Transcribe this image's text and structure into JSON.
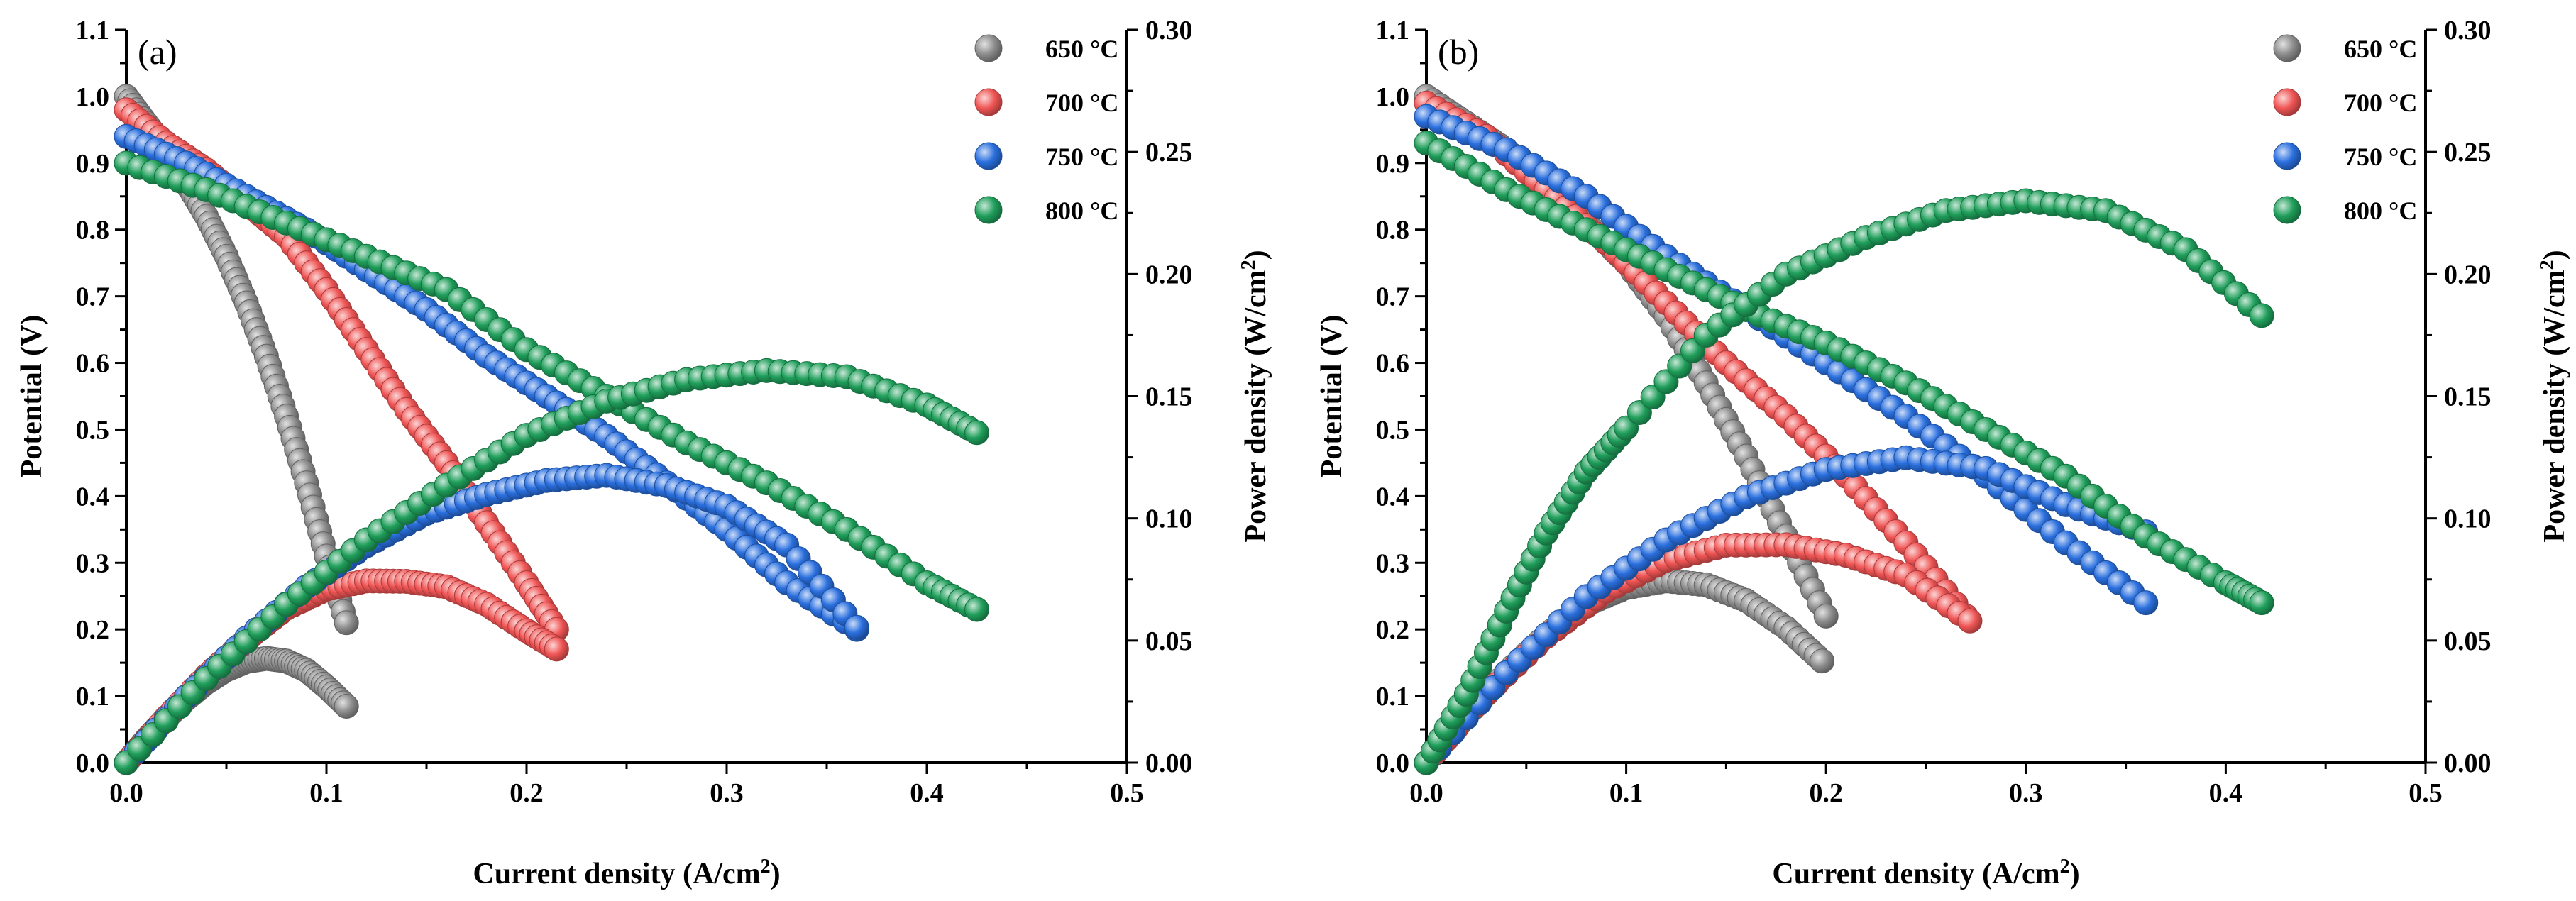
{
  "chart_data": [
    {
      "panel_label": "(a)",
      "type": "scatter",
      "xlabel": "Current density (A/cm",
      "xlabel_sup": "2",
      "xlabel_end": ")",
      "ylabel": "Potential (V)",
      "y2label": "Power density (W/cm",
      "y2label_sup": "2",
      "y2label_end": ")",
      "xlim": [
        0,
        0.5
      ],
      "ylim": [
        0,
        1.1
      ],
      "y2lim": [
        0,
        0.3
      ],
      "xticks": [
        "0.0",
        "0.1",
        "0.2",
        "0.3",
        "0.4",
        "0.5"
      ],
      "yticks": [
        "0.0",
        "0.1",
        "0.2",
        "0.3",
        "0.4",
        "0.5",
        "0.6",
        "0.7",
        "0.8",
        "0.9",
        "1.0",
        "1.1"
      ],
      "y2ticks": [
        "0.00",
        "0.05",
        "0.10",
        "0.15",
        "0.20",
        "0.25",
        "0.30"
      ],
      "legend_position": "top-right",
      "series": [
        {
          "name": "650 °C",
          "color": "#8c8c8c",
          "voltage": [
            [
              0,
              1.0
            ],
            [
              0.01,
              0.96
            ],
            [
              0.02,
              0.92
            ],
            [
              0.03,
              0.87
            ],
            [
              0.04,
              0.82
            ],
            [
              0.05,
              0.76
            ],
            [
              0.06,
              0.69
            ],
            [
              0.07,
              0.61
            ],
            [
              0.08,
              0.52
            ],
            [
              0.09,
              0.42
            ],
            [
              0.1,
              0.31
            ],
            [
              0.11,
              0.21
            ]
          ],
          "power": [
            [
              0,
              0
            ],
            [
              0.01,
              0.0096
            ],
            [
              0.02,
              0.0184
            ],
            [
              0.03,
              0.0261
            ],
            [
              0.04,
              0.0328
            ],
            [
              0.05,
              0.038
            ],
            [
              0.06,
              0.0414
            ],
            [
              0.07,
              0.0427
            ],
            [
              0.08,
              0.0416
            ],
            [
              0.09,
              0.0378
            ],
            [
              0.1,
              0.031
            ],
            [
              0.11,
              0.0231
            ]
          ]
        },
        {
          "name": "700 °C",
          "color": "#f05555",
          "voltage": [
            [
              0,
              0.98
            ],
            [
              0.02,
              0.93
            ],
            [
              0.04,
              0.89
            ],
            [
              0.06,
              0.84
            ],
            [
              0.08,
              0.79
            ],
            [
              0.1,
              0.71
            ],
            [
              0.12,
              0.62
            ],
            [
              0.14,
              0.53
            ],
            [
              0.16,
              0.45
            ],
            [
              0.18,
              0.36
            ],
            [
              0.2,
              0.27
            ],
            [
              0.215,
              0.2
            ]
          ],
          "power": [
            [
              0,
              0
            ],
            [
              0.02,
              0.0186
            ],
            [
              0.04,
              0.0356
            ],
            [
              0.06,
              0.0504
            ],
            [
              0.08,
              0.0632
            ],
            [
              0.1,
              0.071
            ],
            [
              0.12,
              0.0744
            ],
            [
              0.14,
              0.0742
            ],
            [
              0.16,
              0.072
            ],
            [
              0.18,
              0.0648
            ],
            [
              0.2,
              0.054
            ],
            [
              0.215,
              0.0465
            ]
          ]
        },
        {
          "name": "750 °C",
          "color": "#2a6fde",
          "voltage": [
            [
              0,
              0.94
            ],
            [
              0.03,
              0.9
            ],
            [
              0.06,
              0.85
            ],
            [
              0.09,
              0.8
            ],
            [
              0.12,
              0.74
            ],
            [
              0.15,
              0.68
            ],
            [
              0.18,
              0.61
            ],
            [
              0.21,
              0.55
            ],
            [
              0.24,
              0.49
            ],
            [
              0.27,
              0.42
            ],
            [
              0.3,
              0.35
            ],
            [
              0.33,
              0.27
            ],
            [
              0.365,
              0.2
            ]
          ],
          "power": [
            [
              0,
              0
            ],
            [
              0.03,
              0.027
            ],
            [
              0.06,
              0.051
            ],
            [
              0.09,
              0.072
            ],
            [
              0.12,
              0.0888
            ],
            [
              0.15,
              0.102
            ],
            [
              0.18,
              0.1098
            ],
            [
              0.21,
              0.1155
            ],
            [
              0.24,
              0.1176
            ],
            [
              0.27,
              0.1134
            ],
            [
              0.3,
              0.105
            ],
            [
              0.33,
              0.0891
            ],
            [
              0.365,
              0.0554
            ]
          ]
        },
        {
          "name": "800 °C",
          "color": "#1f9e5a",
          "voltage": [
            [
              0,
              0.9
            ],
            [
              0.04,
              0.86
            ],
            [
              0.08,
              0.81
            ],
            [
              0.12,
              0.76
            ],
            [
              0.16,
              0.71
            ],
            [
              0.2,
              0.62
            ],
            [
              0.24,
              0.55
            ],
            [
              0.28,
              0.48
            ],
            [
              0.32,
              0.42
            ],
            [
              0.36,
              0.35
            ],
            [
              0.4,
              0.27
            ],
            [
              0.425,
              0.23
            ]
          ],
          "power": [
            [
              0,
              0
            ],
            [
              0.04,
              0.0344
            ],
            [
              0.08,
              0.0648
            ],
            [
              0.12,
              0.0912
            ],
            [
              0.16,
              0.1136
            ],
            [
              0.2,
              0.134
            ],
            [
              0.24,
              0.148
            ],
            [
              0.28,
              0.1568
            ],
            [
              0.32,
              0.1605
            ],
            [
              0.36,
              0.158
            ],
            [
              0.4,
              0.1464
            ],
            [
              0.425,
              0.1351
            ]
          ]
        }
      ]
    },
    {
      "panel_label": "(b)",
      "type": "scatter",
      "xlabel": "Current density (A/cm",
      "xlabel_sup": "2",
      "xlabel_end": ")",
      "ylabel": "Potential (V)",
      "y2label": "Power density (W/cm",
      "y2label_sup": "2",
      "y2label_end": ")",
      "xlim": [
        0,
        0.5
      ],
      "ylim": [
        0,
        1.1
      ],
      "y2lim": [
        0,
        0.3
      ],
      "xticks": [
        "0.0",
        "0.1",
        "0.2",
        "0.3",
        "0.4",
        "0.5"
      ],
      "yticks": [
        "0.0",
        "0.1",
        "0.2",
        "0.3",
        "0.4",
        "0.5",
        "0.6",
        "0.7",
        "0.8",
        "0.9",
        "1.0",
        "1.1"
      ],
      "y2ticks": [
        "0.00",
        "0.05",
        "0.10",
        "0.15",
        "0.20",
        "0.25",
        "0.30"
      ],
      "legend_position": "top-right",
      "series": [
        {
          "name": "650 °C",
          "color": "#8c8c8c",
          "voltage": [
            [
              0,
              1.0
            ],
            [
              0.02,
              0.96
            ],
            [
              0.04,
              0.92
            ],
            [
              0.06,
              0.87
            ],
            [
              0.08,
              0.81
            ],
            [
              0.1,
              0.75
            ],
            [
              0.12,
              0.67
            ],
            [
              0.14,
              0.57
            ],
            [
              0.16,
              0.46
            ],
            [
              0.18,
              0.34
            ],
            [
              0.2,
              0.22
            ]
          ],
          "power": [
            [
              0,
              0
            ],
            [
              0.02,
              0.0192
            ],
            [
              0.04,
              0.0368
            ],
            [
              0.06,
              0.0522
            ],
            [
              0.08,
              0.0648
            ],
            [
              0.1,
              0.0716
            ],
            [
              0.12,
              0.0744
            ],
            [
              0.14,
              0.0728
            ],
            [
              0.16,
              0.0664
            ],
            [
              0.18,
              0.0552
            ],
            [
              0.198,
              0.0416
            ]
          ]
        },
        {
          "name": "700 °C",
          "color": "#f05555",
          "voltage": [
            [
              0,
              0.99
            ],
            [
              0.03,
              0.94
            ],
            [
              0.06,
              0.86
            ],
            [
              0.09,
              0.78
            ],
            [
              0.12,
              0.69
            ],
            [
              0.15,
              0.6
            ],
            [
              0.18,
              0.52
            ],
            [
              0.21,
              0.43
            ],
            [
              0.24,
              0.33
            ],
            [
              0.27,
              0.22
            ]
          ],
          "power": [
            [
              0,
              0
            ],
            [
              0.03,
              0.0282
            ],
            [
              0.06,
              0.0516
            ],
            [
              0.09,
              0.0702
            ],
            [
              0.12,
              0.0828
            ],
            [
              0.15,
              0.089
            ],
            [
              0.18,
              0.0892
            ],
            [
              0.21,
              0.0849
            ],
            [
              0.24,
              0.0768
            ],
            [
              0.272,
              0.058
            ]
          ]
        },
        {
          "name": "750 °C",
          "color": "#2a6fde",
          "voltage": [
            [
              0,
              0.97
            ],
            [
              0.04,
              0.92
            ],
            [
              0.08,
              0.85
            ],
            [
              0.12,
              0.76
            ],
            [
              0.16,
              0.68
            ],
            [
              0.2,
              0.6
            ],
            [
              0.24,
              0.52
            ],
            [
              0.28,
              0.43
            ],
            [
              0.32,
              0.33
            ],
            [
              0.36,
              0.24
            ]
          ],
          "power": [
            [
              0,
              0
            ],
            [
              0.04,
              0.0368
            ],
            [
              0.08,
              0.068
            ],
            [
              0.12,
              0.0912
            ],
            [
              0.16,
              0.1088
            ],
            [
              0.2,
              0.12
            ],
            [
              0.24,
              0.1248
            ],
            [
              0.28,
              0.1204
            ],
            [
              0.32,
              0.1056
            ],
            [
              0.36,
              0.0945
            ]
          ]
        },
        {
          "name": "800 °C",
          "color": "#1f9e5a",
          "voltage": [
            [
              0,
              0.93
            ],
            [
              0.04,
              0.86
            ],
            [
              0.08,
              0.8
            ],
            [
              0.12,
              0.74
            ],
            [
              0.16,
              0.68
            ],
            [
              0.2,
              0.63
            ],
            [
              0.24,
              0.57
            ],
            [
              0.28,
              0.5
            ],
            [
              0.32,
              0.43
            ],
            [
              0.36,
              0.34
            ],
            [
              0.4,
              0.27
            ],
            [
              0.418,
              0.24
            ]
          ],
          "power": [
            [
              0,
              0
            ],
            [
              0.02,
              0.028
            ],
            [
              0.04,
              0.062
            ],
            [
              0.06,
              0.094
            ],
            [
              0.08,
              0.119
            ],
            [
              0.1,
              0.137
            ],
            [
              0.14,
              0.175
            ],
            [
              0.18,
              0.2
            ],
            [
              0.22,
              0.215
            ],
            [
              0.26,
              0.226
            ],
            [
              0.3,
              0.23
            ],
            [
              0.34,
              0.226
            ],
            [
              0.38,
              0.21
            ],
            [
              0.418,
              0.183
            ]
          ]
        }
      ]
    }
  ]
}
